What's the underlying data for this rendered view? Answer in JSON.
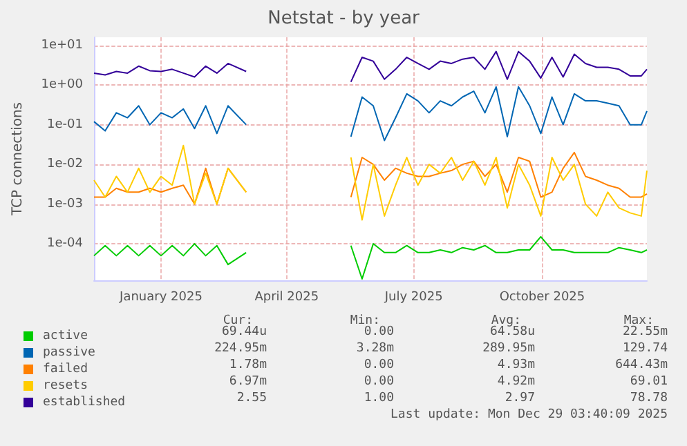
{
  "chart_data": {
    "type": "line",
    "title": "Netstat - by year",
    "ylabel": "TCP connections",
    "log": "y",
    "grid": true,
    "legend": "bottom left",
    "marker": "none",
    "ylim": [
      1.2e-05,
      16
    ],
    "yticks": [
      {
        "value": 0.0001,
        "label": "1e-04"
      },
      {
        "value": 0.001,
        "label": "1e-03"
      },
      {
        "value": 0.01,
        "label": "1e-02"
      },
      {
        "value": 0.1,
        "label": "1e-01"
      },
      {
        "value": 1,
        "label": "1e+00"
      },
      {
        "value": 10,
        "label": "1e+01"
      }
    ],
    "xlim": [
      "2024-11-28",
      "2025-12-29"
    ],
    "xticks": [
      {
        "value": "2025-01-15",
        "label": "January 2025"
      },
      {
        "value": "2025-04-15",
        "label": "April 2025"
      },
      {
        "value": "2025-07-15",
        "label": "July 2025"
      },
      {
        "value": "2025-10-15",
        "label": "October 2025"
      }
    ],
    "x": [
      "2024-11-28",
      "2024-12-06",
      "2024-12-14",
      "2024-12-22",
      "2024-12-30",
      "2025-01-07",
      "2025-01-15",
      "2025-01-23",
      "2025-01-31",
      "2025-02-08",
      "2025-02-16",
      "2025-02-24",
      "2025-03-04",
      "2025-03-17",
      "2025-04-20",
      "2025-05-31",
      "2025-06-08",
      "2025-06-16",
      "2025-06-24",
      "2025-07-02",
      "2025-07-10",
      "2025-07-18",
      "2025-07-26",
      "2025-08-03",
      "2025-08-11",
      "2025-08-19",
      "2025-08-27",
      "2025-09-04",
      "2025-09-12",
      "2025-09-20",
      "2025-09-28",
      "2025-10-06",
      "2025-10-14",
      "2025-10-22",
      "2025-10-30",
      "2025-11-07",
      "2025-11-15",
      "2025-11-23",
      "2025-12-01",
      "2025-12-09",
      "2025-12-17",
      "2025-12-25",
      "2025-12-29"
    ],
    "series": [
      {
        "name": "active",
        "color": "#00cc00",
        "values": [
          5e-05,
          9e-05,
          5e-05,
          9e-05,
          5e-05,
          9e-05,
          5e-05,
          9e-05,
          5e-05,
          0.0001,
          5e-05,
          9e-05,
          3e-05,
          6e-05,
          null,
          9e-05,
          1.3e-05,
          0.0001,
          6e-05,
          6e-05,
          9e-05,
          6e-05,
          6e-05,
          7e-05,
          6e-05,
          8e-05,
          7e-05,
          9e-05,
          6e-05,
          6e-05,
          7e-05,
          7e-05,
          0.00015,
          7e-05,
          7e-05,
          6e-05,
          6e-05,
          6e-05,
          6e-05,
          8e-05,
          7e-05,
          6e-05,
          7e-05
        ]
      },
      {
        "name": "passive",
        "color": "#0066b3",
        "values": [
          0.12,
          0.07,
          0.2,
          0.15,
          0.3,
          0.1,
          0.2,
          0.15,
          0.25,
          0.08,
          0.3,
          0.06,
          0.3,
          0.1,
          null,
          0.05,
          0.5,
          0.3,
          0.04,
          0.15,
          0.6,
          0.4,
          0.2,
          0.4,
          0.3,
          0.5,
          0.7,
          0.2,
          0.9,
          0.05,
          0.9,
          0.3,
          0.06,
          0.5,
          0.1,
          0.6,
          0.4,
          0.4,
          0.35,
          0.3,
          0.1,
          0.1,
          0.22
        ]
      },
      {
        "name": "failed",
        "color": "#ff8000",
        "values": [
          0.0015,
          0.0015,
          0.0025,
          0.002,
          0.002,
          0.0025,
          0.002,
          0.0025,
          0.003,
          0.001,
          0.008,
          0.001,
          0.008,
          0.002,
          null,
          0.0015,
          0.015,
          0.01,
          0.004,
          0.008,
          0.006,
          0.005,
          0.005,
          0.006,
          0.007,
          0.01,
          0.012,
          0.005,
          0.01,
          0.002,
          0.015,
          0.012,
          0.0015,
          0.002,
          0.008,
          0.02,
          0.005,
          0.004,
          0.003,
          0.0025,
          0.0015,
          0.0015,
          0.0018
        ]
      },
      {
        "name": "resets",
        "color": "#ffcc00",
        "values": [
          0.004,
          0.0015,
          0.005,
          0.002,
          0.008,
          0.002,
          0.005,
          0.003,
          0.03,
          0.001,
          0.006,
          0.001,
          0.008,
          0.002,
          null,
          0.015,
          0.0004,
          0.01,
          0.0005,
          0.003,
          0.015,
          0.003,
          0.01,
          0.006,
          0.015,
          0.004,
          0.012,
          0.003,
          0.015,
          0.0008,
          0.01,
          0.003,
          0.0005,
          0.015,
          0.004,
          0.01,
          0.001,
          0.0005,
          0.002,
          0.0008,
          0.0006,
          0.0005,
          0.007
        ]
      },
      {
        "name": "established",
        "color": "#330099",
        "values": [
          2.0,
          1.8,
          2.2,
          2.0,
          3.0,
          2.3,
          2.2,
          2.5,
          2.0,
          1.6,
          3.0,
          2.0,
          3.5,
          2.2,
          null,
          1.2,
          5,
          4,
          1.4,
          2.5,
          5,
          3.5,
          2.5,
          4,
          3.5,
          4.5,
          5,
          2.5,
          7,
          1.4,
          7,
          4,
          1.5,
          5,
          1.6,
          6,
          3.5,
          2.8,
          2.8,
          2.5,
          1.7,
          1.7,
          2.5
        ]
      }
    ],
    "annotations": [
      "Cur:",
      "Min:",
      "Avg:",
      "Max:",
      "69.44u",
      "0.00",
      "64.58u",
      "22.55m",
      "224.95m",
      "3.28m",
      "289.95m",
      "129.74",
      "1.78m",
      "0.00",
      "4.93m",
      "644.43m",
      "6.97m",
      "0.00",
      "4.92m",
      "69.01",
      "2.55",
      "1.00",
      "2.97",
      "78.78",
      "Last update: Mon Dec 29 03:40:09 2025"
    ]
  }
}
